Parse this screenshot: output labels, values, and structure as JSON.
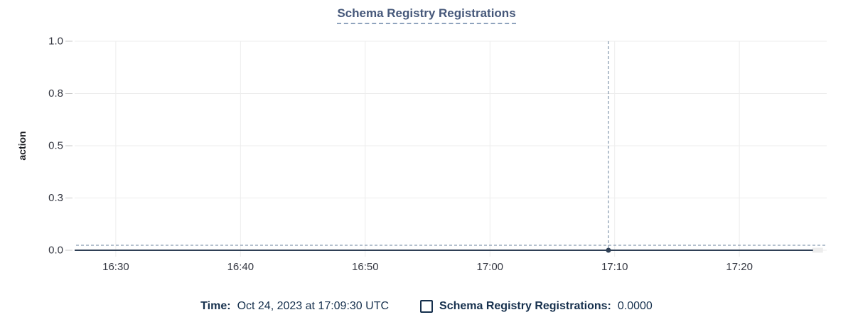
{
  "header": {
    "title": "Schema Registry Registrations"
  },
  "chart_data": {
    "type": "line",
    "title": "Schema Registry Registrations",
    "xlabel": "",
    "ylabel": "action",
    "ylim": [
      0,
      1
    ],
    "grid": true,
    "legend_position": "bottom",
    "y_ticks": [
      {
        "label": "1.0",
        "value": 1.0
      },
      {
        "label": "0.8",
        "value": 0.75
      },
      {
        "label": "0.5",
        "value": 0.5
      },
      {
        "label": "0.3",
        "value": 0.25
      },
      {
        "label": "0.0",
        "value": 0.0
      }
    ],
    "x_ticks": [
      {
        "label": "16:30",
        "minutes": 990
      },
      {
        "label": "16:40",
        "minutes": 1000
      },
      {
        "label": "16:50",
        "minutes": 1010
      },
      {
        "label": "17:00",
        "minutes": 1020
      },
      {
        "label": "17:10",
        "minutes": 1030
      },
      {
        "label": "17:20",
        "minutes": 1040
      }
    ],
    "x_domain_minutes": [
      986.7,
      1047.0
    ],
    "series": [
      {
        "name": "Schema Registry Registrations",
        "constant_value": 0,
        "x_start_minutes": 986.7,
        "x_end_minutes": 1045.9,
        "partial_bucket_end_minutes": 1046.7,
        "color": "#2f4056"
      }
    ],
    "crosshair": {
      "time": "17:09:30",
      "minutes": 1029.5,
      "pointer_value": 0.024,
      "marker_value": 0
    }
  },
  "tooltip": {
    "time_label": "Time:",
    "time_value": "Oct 24, 2023 at 17:09:30 UTC",
    "series_label": "Schema Registry Registrations:",
    "series_value": "0.0000"
  },
  "colors": {
    "title": "#46587a",
    "title_underline": "#8fa3bd",
    "series": "#2f4056",
    "crosshair": "#69809c",
    "grid": "#ededed",
    "tick": "#cacaca",
    "axis_text": "#343741",
    "axis_label": "#1a1c21",
    "legend_text": "#16304d",
    "partial_bucket": "#ececec"
  }
}
